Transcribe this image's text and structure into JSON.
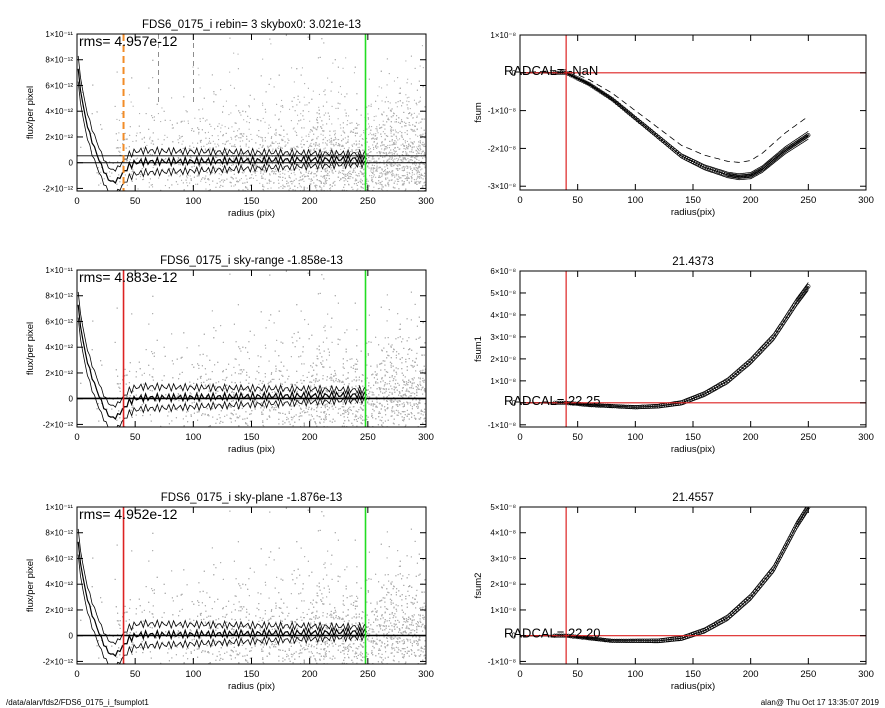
{
  "footer": {
    "path": "/data/alan/fds2/FDS6_0175_i_fsumplot1",
    "stamp": "alan@  Thu Oct 17 13:35:07 2019"
  },
  "colors": {
    "scatter": "#b0b0b0",
    "profile": "#000000",
    "green_line": "#22dd22",
    "red_line": "#dd2222",
    "orange_line": "#f28c28"
  },
  "chart_data": [
    {
      "type": "scatter",
      "title": "FDS6_0175_i rebin= 3    skybox0:  3.021e-13",
      "annotation": "rms= 4.957e-12",
      "xlabel": "radius (pix)",
      "ylabel": "flux/per pixel",
      "xlim": [
        0,
        300
      ],
      "ylim": [
        -2.2e-12,
        1e-11
      ],
      "xticks": [
        0,
        50,
        100,
        150,
        200,
        250,
        300
      ],
      "xtick_labels": [
        "0",
        "50",
        "100",
        "150",
        "200",
        "250",
        "300"
      ],
      "yticks": [
        -2e-12,
        0,
        2e-12,
        4e-12,
        6e-12,
        8e-12,
        1e-11
      ],
      "ytick_labels": [
        "-2×10⁻¹²",
        "0",
        "2×10⁻¹²",
        "4×10⁻¹²",
        "6×10⁻¹²",
        "8×10⁻¹²",
        "1×10⁻¹¹"
      ],
      "vlines": [
        {
          "x": 40,
          "color": "orange",
          "style": "dashed"
        },
        {
          "x": 248,
          "color": "green",
          "style": "solid"
        }
      ],
      "faint_dashed_vlines": [
        70,
        100
      ],
      "zero_line": 0,
      "sky_level": 3.021e-13
    },
    {
      "type": "line",
      "title": "",
      "annotation": "RADCAL= -NaN",
      "xlabel": "radius(pix)",
      "ylabel": "fsum",
      "xlim": [
        0,
        300
      ],
      "ylim": [
        -3.1e-08,
        1e-08
      ],
      "xticks": [
        0,
        50,
        100,
        150,
        200,
        250,
        300
      ],
      "xtick_labels": [
        "0",
        "50",
        "100",
        "150",
        "200",
        "250",
        "300"
      ],
      "yticks": [
        -3e-08,
        -2e-08,
        -1e-08,
        0,
        1e-08
      ],
      "ytick_labels": [
        "-3×10⁻⁸",
        "-2×10⁻⁸",
        "-1×10⁻⁸",
        "0",
        "1×10⁻⁸"
      ],
      "vline": 40,
      "hline": 0,
      "x": [
        0,
        20,
        40,
        60,
        80,
        100,
        120,
        140,
        160,
        180,
        190,
        200,
        210,
        220,
        230,
        240,
        250
      ],
      "y": [
        0,
        0,
        0,
        -3e-09,
        -7e-09,
        -1.2e-08,
        -1.7e-08,
        -2.2e-08,
        -2.5e-08,
        -2.7e-08,
        -2.75e-08,
        -2.72e-08,
        -2.55e-08,
        -2.3e-08,
        -2.05e-08,
        -1.85e-08,
        -1.65e-08
      ],
      "dashed_offset": 4e-09
    },
    {
      "type": "scatter",
      "title": "FDS6_0175_i sky-range -1.858e-13",
      "annotation": "rms= 4.883e-12",
      "xlabel": "radius (pix)",
      "ylabel": "flux/per pixel",
      "xlim": [
        0,
        300
      ],
      "ylim": [
        -2.2e-12,
        1e-11
      ],
      "xticks": [
        0,
        50,
        100,
        150,
        200,
        250,
        300
      ],
      "xtick_labels": [
        "0",
        "50",
        "100",
        "150",
        "200",
        "250",
        "300"
      ],
      "yticks": [
        -2e-12,
        0,
        2e-12,
        4e-12,
        6e-12,
        8e-12,
        1e-11
      ],
      "ytick_labels": [
        "-2×10⁻¹²",
        "0",
        "2×10⁻¹²",
        "4×10⁻¹²",
        "6×10⁻¹²",
        "8×10⁻¹²",
        "1×10⁻¹¹"
      ],
      "vlines": [
        {
          "x": 40,
          "color": "red",
          "style": "solid"
        },
        {
          "x": 248,
          "color": "green",
          "style": "solid"
        }
      ],
      "faint_dashed_vlines": [],
      "zero_line": 0,
      "sky_level": -1.858e-13
    },
    {
      "type": "line",
      "title": "21.4373",
      "annotation": "RADCAL= 22.25",
      "xlabel": "radius(pix)",
      "ylabel": "fsum1",
      "xlim": [
        0,
        300
      ],
      "ylim": [
        -1.1e-08,
        6e-08
      ],
      "xticks": [
        0,
        50,
        100,
        150,
        200,
        250,
        300
      ],
      "xtick_labels": [
        "0",
        "50",
        "100",
        "150",
        "200",
        "250",
        "300"
      ],
      "yticks": [
        -1e-08,
        0,
        1e-08,
        2e-08,
        3e-08,
        4e-08,
        5e-08,
        6e-08
      ],
      "ytick_labels": [
        "-1×10⁻⁸",
        "0",
        "1×10⁻⁸",
        "2×10⁻⁸",
        "3×10⁻⁸",
        "4×10⁻⁸",
        "5×10⁻⁸",
        "6×10⁻⁸"
      ],
      "vline": 40,
      "hline": 0,
      "x": [
        0,
        20,
        40,
        60,
        80,
        100,
        120,
        140,
        160,
        180,
        200,
        220,
        240,
        250
      ],
      "y": [
        0,
        0,
        0,
        -1e-09,
        -1.5e-09,
        -2e-09,
        -1.5e-09,
        0,
        4e-09,
        1e-08,
        1.9e-08,
        3e-08,
        4.6e-08,
        5.3e-08
      ],
      "dashed_offset": 0
    },
    {
      "type": "scatter",
      "title": "FDS6_0175_i sky-plane -1.876e-13",
      "annotation": "rms= 4.952e-12",
      "xlabel": "radius (pix)",
      "ylabel": "flux/per pixel",
      "xlim": [
        0,
        300
      ],
      "ylim": [
        -2.2e-12,
        1e-11
      ],
      "xticks": [
        0,
        50,
        100,
        150,
        200,
        250,
        300
      ],
      "xtick_labels": [
        "0",
        "50",
        "100",
        "150",
        "200",
        "250",
        "300"
      ],
      "yticks": [
        -2e-12,
        0,
        2e-12,
        4e-12,
        6e-12,
        8e-12,
        1e-11
      ],
      "ytick_labels": [
        "-2×10⁻¹²",
        "0",
        "2×10⁻¹²",
        "4×10⁻¹²",
        "6×10⁻¹²",
        "8×10⁻¹²",
        "1×10⁻¹¹"
      ],
      "vlines": [
        {
          "x": 40,
          "color": "red",
          "style": "solid"
        },
        {
          "x": 248,
          "color": "green",
          "style": "solid"
        }
      ],
      "faint_dashed_vlines": [],
      "zero_line": 0,
      "sky_level": -1.876e-13
    },
    {
      "type": "line",
      "title": "21.4557",
      "annotation": "RADCAL= 22.20",
      "xlabel": "radius(pix)",
      "ylabel": "fsum2",
      "xlim": [
        0,
        300
      ],
      "ylim": [
        -1.1e-08,
        5e-08
      ],
      "xticks": [
        0,
        50,
        100,
        150,
        200,
        250,
        300
      ],
      "xtick_labels": [
        "0",
        "50",
        "100",
        "150",
        "200",
        "250",
        "300"
      ],
      "yticks": [
        -1e-08,
        0,
        1e-08,
        2e-08,
        3e-08,
        4e-08,
        5e-08
      ],
      "ytick_labels": [
        "-1×10⁻⁸",
        "0",
        "1×10⁻⁸",
        "2×10⁻⁸",
        "3×10⁻⁸",
        "4×10⁻⁸",
        "5×10⁻⁸"
      ],
      "vline": 40,
      "hline": 0,
      "x": [
        0,
        20,
        40,
        60,
        80,
        100,
        120,
        140,
        160,
        180,
        200,
        220,
        240,
        250
      ],
      "y": [
        0,
        0,
        0,
        -1e-09,
        -2e-09,
        -2e-09,
        -2e-09,
        -1e-09,
        2e-09,
        7e-09,
        1.5e-08,
        2.6e-08,
        4.3e-08,
        5e-08
      ],
      "dashed_offset": 0
    }
  ]
}
